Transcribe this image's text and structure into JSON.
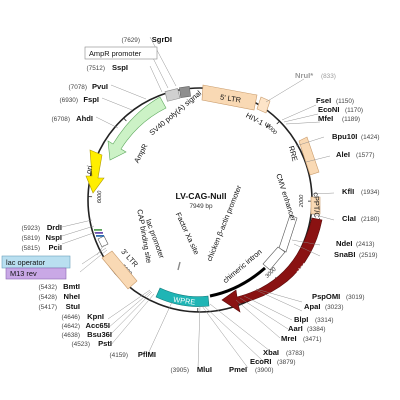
{
  "plasmid": {
    "name": "LV-CAG-Null",
    "length_label": "7949 bp",
    "total_bp": 7949
  },
  "ticks": [
    {
      "bp": 1000,
      "label": "1000"
    },
    {
      "bp": 2000,
      "label": "2000"
    },
    {
      "bp": 3000,
      "label": "3000"
    },
    {
      "bp": 4000,
      "label": "4000"
    },
    {
      "bp": 5000,
      "label": "5000"
    },
    {
      "bp": 6000,
      "label": "6000"
    },
    {
      "bp": 7000,
      "label": "7000"
    }
  ],
  "features": [
    {
      "key": "ltr5",
      "label": "5' LTR",
      "start": 1,
      "end": 181,
      "color": "#f9d9b4",
      "type": "box"
    },
    {
      "key": "hiv_psi",
      "label": "HIV-1 Ψ",
      "start": 230,
      "end": 355,
      "color": "#fde4c8",
      "type": "box"
    },
    {
      "key": "rre",
      "label": "RRE",
      "start": 850,
      "end": 1085,
      "color": "#f9d9b4",
      "type": "box"
    },
    {
      "key": "cppt",
      "label": "cPPT/CTS",
      "start": 1580,
      "end": 1700,
      "color": "#f9d9b4",
      "type": "box"
    },
    {
      "key": "cmv",
      "label": "CMV enhancer",
      "start": 1760,
      "end": 2040,
      "color": "#ffffff",
      "type": "box"
    },
    {
      "key": "cba",
      "label": "chicken β-actin promoter",
      "start": 2040,
      "end": 2320,
      "color": "#ffffff",
      "type": "box"
    },
    {
      "key": "chim",
      "label": "chimeric intron",
      "start": 2325,
      "end": 3335,
      "color": "#000000",
      "type": "line"
    },
    {
      "key": "cag",
      "label": "CAG Promoter",
      "start": 1760,
      "end": 3460,
      "color": "#8a1212",
      "type": "arrow"
    },
    {
      "key": "wpre",
      "label": "WPRE",
      "start": 3710,
      "end": 4300,
      "color": "#1fb5b5",
      "type": "box"
    },
    {
      "key": "fxa",
      "label": "Factor Xa site",
      "start": 4400,
      "end": 4470,
      "color": "#888888",
      "type": "line"
    },
    {
      "key": "ltr3",
      "label": "3' LTR",
      "start": 4790,
      "end": 5024,
      "color": "#f9d9b4",
      "type": "box"
    },
    {
      "key": "lacp",
      "label": "lac promoter",
      "start": 5300,
      "end": 5390,
      "color": "#ffffff",
      "type": "box"
    },
    {
      "key": "cap",
      "label": "CAP binding site",
      "start": 5420,
      "end": 5450,
      "color": "#5aa35a",
      "type": "box"
    },
    {
      "key": "ori",
      "label": "ori",
      "start": 5950,
      "end": 6540,
      "color": "#ffee00",
      "type": "arrow"
    },
    {
      "key": "ampr",
      "label": "AmpR",
      "start": 6710,
      "end": 7540,
      "color": "#ccf2c6",
      "type": "arrow"
    },
    {
      "key": "sv40",
      "label": "SV40 poly(A) signal",
      "start": 7600,
      "end": 7722,
      "color": "#d0d0d0",
      "type": "box"
    },
    {
      "key": "sv40b",
      "label": "",
      "start": 7725,
      "end": 7805,
      "color": "#8e8e8e",
      "type": "box"
    }
  ],
  "sites": [
    {
      "name": "SgrDI",
      "pos": "(7629)",
      "color": "#111111"
    },
    {
      "name": "AmpR promoter",
      "pos": "",
      "color": "#111111"
    },
    {
      "name": "SspI",
      "pos": "(7512)",
      "color": "#111111"
    },
    {
      "name": "PvuI",
      "pos": "(7078)",
      "color": "#111111"
    },
    {
      "name": "FspI",
      "pos": "(6930)",
      "color": "#111111"
    },
    {
      "name": "AhdI",
      "pos": "(6708)",
      "color": "#111111"
    },
    {
      "name": "DrdI",
      "pos": "(5923)",
      "color": "#111111"
    },
    {
      "name": "NspI",
      "pos": "(5819)",
      "color": "#111111"
    },
    {
      "name": "PciI",
      "pos": "(5815)",
      "color": "#111111"
    },
    {
      "name": "lac operator",
      "pos": "",
      "color": "#111111"
    },
    {
      "name": "M13 rev",
      "pos": "",
      "color": "#111111"
    },
    {
      "name": "BmtI",
      "pos": "(5432)",
      "color": "#111111"
    },
    {
      "name": "NheI",
      "pos": "(5428)",
      "color": "#111111"
    },
    {
      "name": "StuI",
      "pos": "(5417)",
      "color": "#111111"
    },
    {
      "name": "KpnI",
      "pos": "(4646)",
      "color": "#111111"
    },
    {
      "name": "Acc65I",
      "pos": "(4642)",
      "color": "#111111"
    },
    {
      "name": "Bsu36I",
      "pos": "(4638)",
      "color": "#111111"
    },
    {
      "name": "PstI",
      "pos": "(4523)",
      "color": "#111111"
    },
    {
      "name": "PflMI",
      "pos": "(4159)",
      "color": "#111111"
    },
    {
      "name": "MluI",
      "pos": "(3905)",
      "color": "#111111"
    },
    {
      "name": "PmeI",
      "pos": "(3900)",
      "color": "#111111"
    },
    {
      "name": "EcoRI",
      "pos": "(3879)",
      "color": "#111111"
    },
    {
      "name": "XbaI",
      "pos": "(3783)",
      "color": "#111111"
    },
    {
      "name": "MreI",
      "pos": "(3471)",
      "color": "#111111"
    },
    {
      "name": "AarI",
      "pos": "(3384)",
      "color": "#111111"
    },
    {
      "name": "BlpI",
      "pos": "(3314)",
      "color": "#111111"
    },
    {
      "name": "ApaI",
      "pos": "(3023)",
      "color": "#111111"
    },
    {
      "name": "PspOMI",
      "pos": "(3019)",
      "color": "#111111"
    },
    {
      "name": "SnaBI",
      "pos": "(2519)",
      "color": "#111111"
    },
    {
      "name": "NdeI",
      "pos": "(2413)",
      "color": "#111111"
    },
    {
      "name": "ClaI",
      "pos": "(2180)",
      "color": "#111111"
    },
    {
      "name": "KflI",
      "pos": "(1934)",
      "color": "#111111"
    },
    {
      "name": "AleI",
      "pos": "(1577)",
      "color": "#111111"
    },
    {
      "name": "Bpu10I",
      "pos": "(1424)",
      "color": "#111111"
    },
    {
      "name": "MfeI",
      "pos": "(1189)",
      "color": "#111111"
    },
    {
      "name": "EcoNI",
      "pos": "(1170)",
      "color": "#111111"
    },
    {
      "name": "FseI",
      "pos": "(1150)",
      "color": "#111111"
    },
    {
      "name": "NruI*",
      "pos": "(833)",
      "color": "#9a9a9a"
    }
  ]
}
